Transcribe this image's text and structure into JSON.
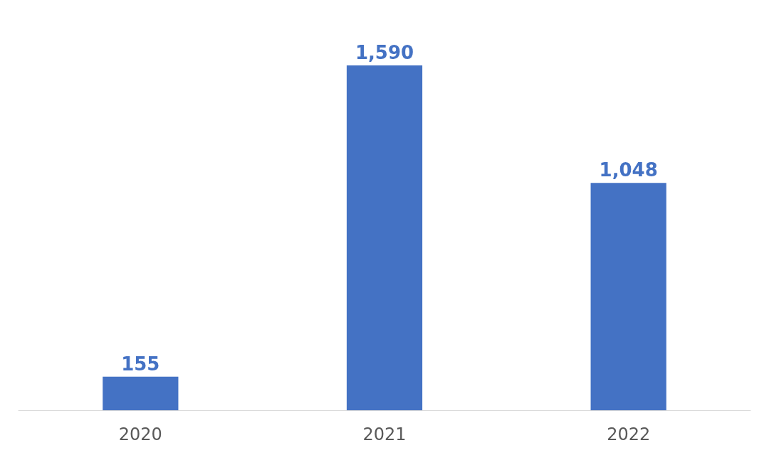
{
  "chart_data": {
    "type": "bar",
    "categories": [
      "2020",
      "2021",
      "2022"
    ],
    "values": [
      155,
      1590,
      1048
    ],
    "value_labels": [
      "155",
      "1,590",
      "1,048"
    ],
    "color": "#4472c4"
  }
}
